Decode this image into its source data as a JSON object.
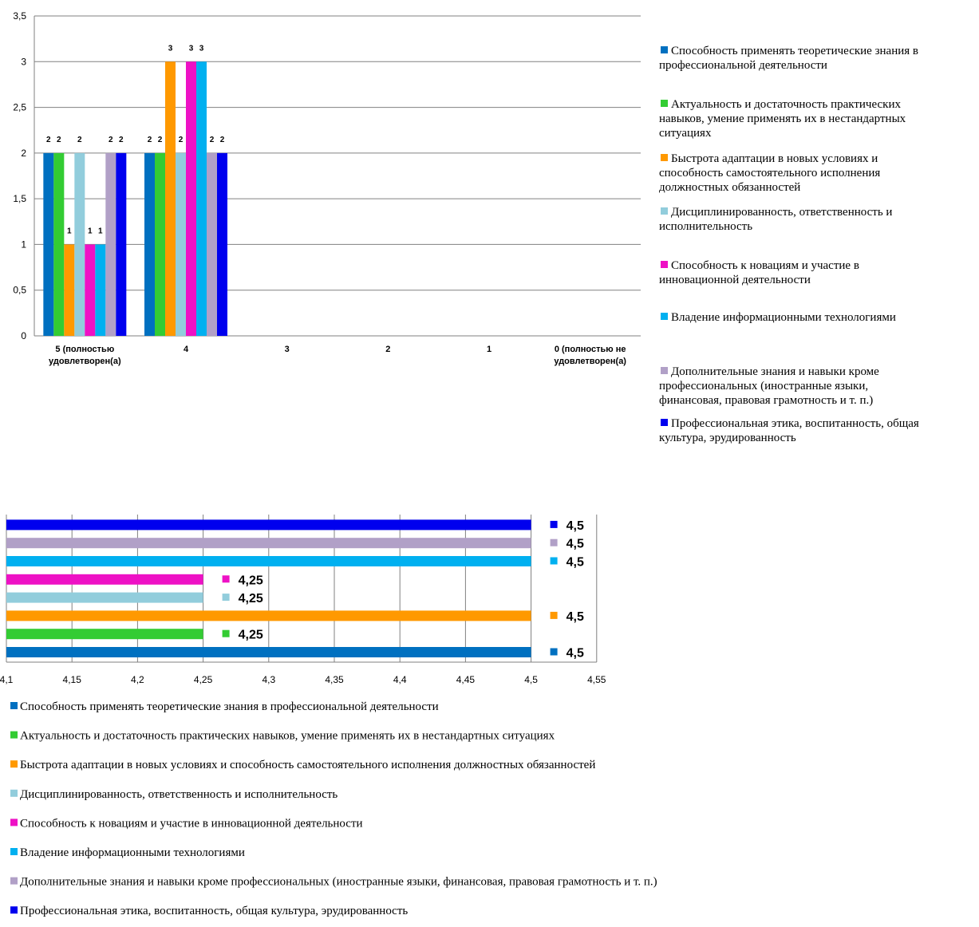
{
  "chart_data": [
    {
      "type": "bar",
      "orientation": "vertical",
      "categories": [
        "5 (полностью удовлетворен(а)",
        "4",
        "3",
        "2",
        "1",
        "0 (полностью не удовлетворен(а)"
      ],
      "category_lines": [
        [
          "5 (полностью",
          "удовлетворен(а)"
        ],
        [
          "4"
        ],
        [
          "3"
        ],
        [
          "2"
        ],
        [
          "1"
        ],
        [
          "0 (полностью не",
          "удовлетворен(а)"
        ]
      ],
      "ylim": [
        0,
        3.5
      ],
      "yticks": [
        "0",
        "0,5",
        "1",
        "1,5",
        "2",
        "2,5",
        "3",
        "3,5"
      ],
      "grid": true,
      "legend_position": "right",
      "series": [
        {
          "name": "Способность применять теоретические знания в профессиональной деятельности",
          "legend_lines": [
            "Способность применять теоретические знания в",
            "профессиональной деятельности"
          ],
          "color": "#0070C0",
          "values": [
            2,
            2,
            0,
            0,
            0,
            0
          ],
          "labels": [
            "2",
            "2"
          ]
        },
        {
          "name": "Актуальность и достаточность практических навыков, умение применять их в нестандартных ситуациях",
          "legend_lines": [
            "Актуальность и достаточность практических",
            "навыков, умение применять их в нестандартных",
            "ситуациях"
          ],
          "color": "#33CC33",
          "values": [
            2,
            2,
            0,
            0,
            0,
            0
          ],
          "labels": [
            "2",
            "2"
          ]
        },
        {
          "name": "Быстрота адаптации в новых условиях и способность самостоятельного исполнения должностных обязанностей",
          "legend_lines": [
            "Быстрота адаптации в новых условиях и",
            "способность самостоятельного исполнения",
            "должностных обязанностей"
          ],
          "color": "#FF9900",
          "values": [
            1,
            3,
            0,
            0,
            0,
            0
          ],
          "labels": [
            "1",
            "3"
          ]
        },
        {
          "name": "Дисциплинированность, ответственность и исполнительность",
          "legend_lines": [
            "Дисциплинированность, ответственность и",
            "исполнительность"
          ],
          "color": "#92CDDC",
          "values": [
            2,
            2,
            0,
            0,
            0,
            0
          ],
          "labels": [
            "2",
            "2"
          ]
        },
        {
          "name": "Способность к новациям и участие в инновационной деятельности",
          "legend_lines": [
            "Способность к новациям и участие в",
            "инновационной деятельности"
          ],
          "color": "#EE11C5",
          "values": [
            1,
            3,
            0,
            0,
            0,
            0
          ],
          "labels": [
            "1",
            "3"
          ]
        },
        {
          "name": "Владение информационными технологиями",
          "legend_lines": [
            "Владение информационными технологиями"
          ],
          "color": "#00B0F0",
          "values": [
            1,
            3,
            0,
            0,
            0,
            0
          ],
          "labels": [
            "1",
            "3"
          ]
        },
        {
          "name": "Дополнительные знания и навыки кроме профессиональных (иностранные языки, финансовая, правовая грамотность и т. п.)",
          "legend_lines": [
            "Дополнительные знания и навыки кроме",
            "профессиональных (иностранные языки,",
            "финансовая, правовая грамотность и т. п.)"
          ],
          "color": "#B1A0C7",
          "values": [
            2,
            2,
            0,
            0,
            0,
            0
          ],
          "labels": [
            "2",
            "2"
          ]
        },
        {
          "name": "Профессиональная этика, воспитанность, общая культура, эрудированность",
          "legend_lines": [
            "Профессиональная этика, воспитанность, общая",
            "культура, эрудированность"
          ],
          "color": "#0000EE",
          "values": [
            2,
            2,
            0,
            0,
            0,
            0
          ],
          "labels": [
            "2",
            "2"
          ]
        }
      ]
    },
    {
      "type": "bar",
      "orientation": "horizontal",
      "xlim": [
        4.1,
        4.55
      ],
      "xticks": [
        "4,1",
        "4,15",
        "4,2",
        "4,25",
        "4,3",
        "4,35",
        "4,4",
        "4,45",
        "4,5",
        "4,55"
      ],
      "grid": true,
      "legend_position": "bottom",
      "series": [
        {
          "name": "Способность применять теоретические знания в профессиональной деятельности",
          "color": "#0070C0",
          "value": 4.5,
          "label": "4,5"
        },
        {
          "name": "Актуальность и достаточность практических навыков, умение применять их в нестандартных ситуациях",
          "color": "#33CC33",
          "value": 4.25,
          "label": "4,25"
        },
        {
          "name": "Быстрота адаптации в новых условиях и способность самостоятельного исполнения должностных обязанностей",
          "color": "#FF9900",
          "value": 4.5,
          "label": "4,5"
        },
        {
          "name": "Дисциплинированность, ответственность и исполнительность",
          "color": "#92CDDC",
          "value": 4.25,
          "label": "4,25"
        },
        {
          "name": "Способность к новациям и участие в инновационной деятельности",
          "color": "#EE11C5",
          "value": 4.25,
          "label": "4,25"
        },
        {
          "name": "Владение информационными технологиями",
          "color": "#00B0F0",
          "value": 4.5,
          "label": "4,5"
        },
        {
          "name": "Дополнительные знания и навыки кроме профессиональных (иностранные языки, финансовая, правовая грамотность и т. п.)",
          "color": "#B1A0C7",
          "value": 4.5,
          "label": "4,5"
        },
        {
          "name": "Профессиональная этика, воспитанность, общая культура, эрудированность",
          "color": "#0000EE",
          "value": 4.5,
          "label": "4,5"
        }
      ]
    }
  ]
}
